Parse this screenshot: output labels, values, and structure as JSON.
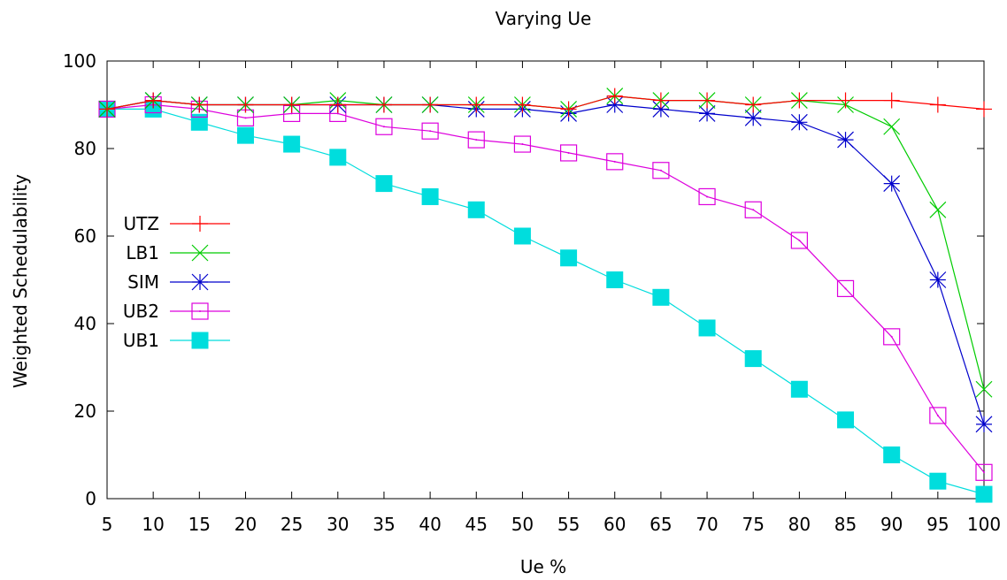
{
  "chart_data": {
    "type": "line",
    "title": "Varying Ue",
    "xlabel": "Ue %",
    "ylabel": "Weighted Schedulability",
    "x": [
      5,
      10,
      15,
      20,
      25,
      30,
      35,
      40,
      45,
      50,
      55,
      60,
      65,
      70,
      75,
      80,
      85,
      90,
      95,
      100
    ],
    "xlim": [
      5,
      100
    ],
    "ylim": [
      0,
      100
    ],
    "yticks": [
      0,
      20,
      40,
      60,
      80,
      100
    ],
    "grid": false,
    "legend_position": "left",
    "series": [
      {
        "name": "UTZ",
        "color": "#ff0000",
        "marker": "plus",
        "values": [
          89,
          91,
          90,
          90,
          90,
          90,
          90,
          90,
          90,
          90,
          89,
          92,
          91,
          91,
          90,
          91,
          91,
          91,
          90,
          89
        ]
      },
      {
        "name": "LB1",
        "color": "#00cc00",
        "marker": "cross",
        "values": [
          89,
          91,
          90,
          90,
          90,
          91,
          90,
          90,
          90,
          90,
          89,
          92,
          91,
          91,
          90,
          91,
          90,
          85,
          66,
          25
        ]
      },
      {
        "name": "SIM",
        "color": "#0000cc",
        "marker": "star",
        "values": [
          89,
          91,
          90,
          90,
          90,
          90,
          90,
          90,
          89,
          89,
          88,
          90,
          89,
          88,
          87,
          86,
          82,
          72,
          50,
          17
        ]
      },
      {
        "name": "UB2",
        "color": "#dd00dd",
        "marker": "open-square",
        "values": [
          89,
          90,
          89,
          87,
          88,
          88,
          85,
          84,
          82,
          81,
          79,
          77,
          75,
          69,
          66,
          59,
          48,
          37,
          19,
          6
        ]
      },
      {
        "name": "UB1",
        "color": "#00dddd",
        "marker": "filled-square",
        "values": [
          89,
          89,
          86,
          83,
          81,
          78,
          72,
          69,
          66,
          60,
          55,
          50,
          46,
          39,
          32,
          25,
          18,
          10,
          4,
          1
        ]
      }
    ]
  }
}
